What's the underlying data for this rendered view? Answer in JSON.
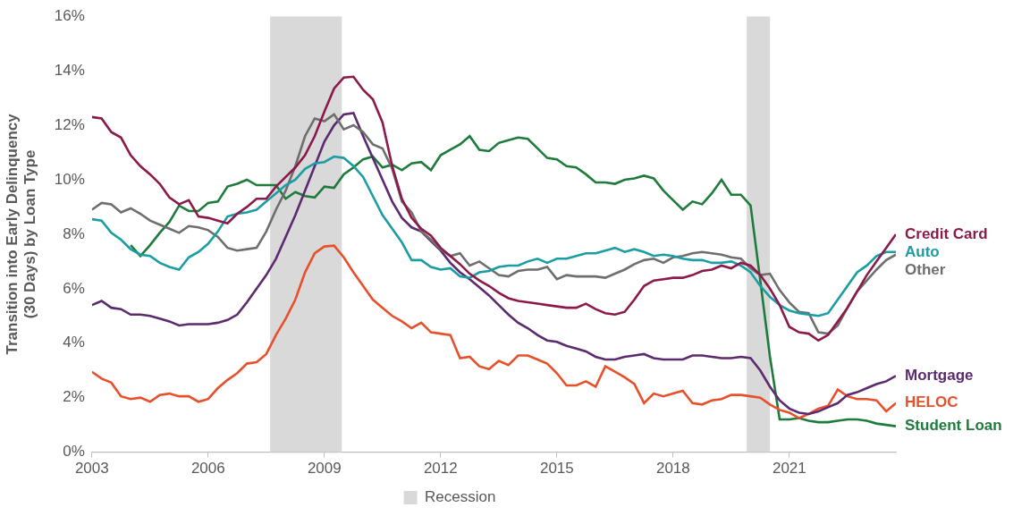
{
  "chart_data": {
    "type": "line",
    "y_label": [
      "Transition into Early Delinquency",
      "(30 Days) by Loan Type"
    ],
    "x": [
      2003,
      2003.25,
      2003.5,
      2003.75,
      2004,
      2004.25,
      2004.5,
      2004.75,
      2005,
      2005.25,
      2005.5,
      2005.75,
      2006,
      2006.25,
      2006.5,
      2006.75,
      2007,
      2007.25,
      2007.5,
      2007.75,
      2008,
      2008.25,
      2008.5,
      2008.75,
      2009,
      2009.25,
      2009.5,
      2009.75,
      2010,
      2010.25,
      2010.5,
      2010.75,
      2011,
      2011.25,
      2011.5,
      2011.75,
      2012,
      2012.25,
      2012.5,
      2012.75,
      2013,
      2013.25,
      2013.5,
      2013.75,
      2014,
      2014.25,
      2014.5,
      2014.75,
      2015,
      2015.25,
      2015.5,
      2015.75,
      2016,
      2016.25,
      2016.5,
      2016.75,
      2017,
      2017.25,
      2017.5,
      2017.75,
      2018,
      2018.25,
      2018.5,
      2018.75,
      2019,
      2019.25,
      2019.5,
      2019.75,
      2020,
      2020.25,
      2020.5,
      2020.75,
      2021,
      2021.25,
      2021.5,
      2021.75,
      2022,
      2022.25,
      2022.5,
      2022.75,
      2023,
      2023.25,
      2023.5,
      2023.75
    ],
    "series": [
      {
        "name": "Credit Card",
        "color": "#8b1a4b",
        "values": [
          12.3,
          12.25,
          11.75,
          11.55,
          10.9,
          10.5,
          10.2,
          9.85,
          9.35,
          9.1,
          9.25,
          8.65,
          8.6,
          8.5,
          8.4,
          8.75,
          9.0,
          9.3,
          9.3,
          9.75,
          10.1,
          10.45,
          10.9,
          11.6,
          12.5,
          13.35,
          13.75,
          13.78,
          13.3,
          12.95,
          12.1,
          10.5,
          9.3,
          8.6,
          8.2,
          7.95,
          7.5,
          7.2,
          6.9,
          6.55,
          6.3,
          6.1,
          5.85,
          5.65,
          5.55,
          5.5,
          5.45,
          5.4,
          5.35,
          5.3,
          5.3,
          5.45,
          5.25,
          5.1,
          5.05,
          5.15,
          5.6,
          6.1,
          6.3,
          6.35,
          6.4,
          6.4,
          6.5,
          6.65,
          6.7,
          6.85,
          6.75,
          6.95,
          6.85,
          6.5,
          6.0,
          5.4,
          4.6,
          4.4,
          4.35,
          4.1,
          4.3,
          4.8,
          5.3,
          5.9,
          6.5,
          7.0,
          7.5,
          8.0
        ]
      },
      {
        "name": "Auto",
        "color": "#1a9ea3",
        "values": [
          8.55,
          8.5,
          8.05,
          7.8,
          7.45,
          7.25,
          7.2,
          6.95,
          6.8,
          6.7,
          7.15,
          7.35,
          7.65,
          8.1,
          8.65,
          8.75,
          8.8,
          8.9,
          9.2,
          9.5,
          9.8,
          10.0,
          10.4,
          10.6,
          10.65,
          10.85,
          10.8,
          10.5,
          10.1,
          9.4,
          8.7,
          8.2,
          7.7,
          7.05,
          7.05,
          6.8,
          6.7,
          6.75,
          6.45,
          6.4,
          6.6,
          6.65,
          6.8,
          6.85,
          6.85,
          7.0,
          7.1,
          6.95,
          7.1,
          7.1,
          7.2,
          7.3,
          7.3,
          7.4,
          7.5,
          7.35,
          7.45,
          7.35,
          7.2,
          7.25,
          7.2,
          7.1,
          7.05,
          7.05,
          6.95,
          6.95,
          7.0,
          6.85,
          6.6,
          6.1,
          5.7,
          5.4,
          5.2,
          5.1,
          5.05,
          5.0,
          5.1,
          5.6,
          6.1,
          6.6,
          6.85,
          7.2,
          7.35,
          7.35
        ]
      },
      {
        "name": "Other",
        "color": "#6e6e6e",
        "values": [
          8.9,
          9.15,
          9.1,
          8.8,
          8.95,
          8.75,
          8.5,
          8.35,
          8.2,
          8.05,
          8.3,
          8.25,
          8.15,
          7.9,
          7.5,
          7.4,
          7.45,
          7.5,
          8.1,
          8.9,
          9.6,
          10.5,
          11.6,
          12.25,
          12.15,
          12.4,
          11.85,
          12.0,
          11.75,
          11.3,
          11.15,
          10.4,
          9.2,
          8.8,
          8.1,
          7.8,
          7.45,
          7.2,
          7.3,
          6.85,
          7.0,
          6.75,
          6.5,
          6.45,
          6.65,
          6.7,
          6.7,
          6.8,
          6.35,
          6.5,
          6.45,
          6.45,
          6.45,
          6.4,
          6.55,
          6.7,
          6.9,
          7.05,
          7.1,
          6.95,
          7.15,
          7.2,
          7.3,
          7.35,
          7.3,
          7.25,
          7.15,
          7.1,
          6.75,
          6.5,
          6.55,
          5.95,
          5.5,
          5.15,
          5.1,
          4.4,
          4.35,
          4.65,
          5.3,
          5.9,
          6.3,
          6.7,
          7.05,
          7.25
        ]
      },
      {
        "name": "Mortgage",
        "color": "#5b2a6f",
        "values": [
          5.4,
          5.55,
          5.3,
          5.25,
          5.05,
          5.05,
          5.0,
          4.9,
          4.8,
          4.65,
          4.7,
          4.7,
          4.7,
          4.75,
          4.85,
          5.05,
          5.5,
          6.0,
          6.5,
          7.1,
          7.9,
          8.7,
          9.6,
          10.5,
          11.4,
          12.0,
          12.4,
          12.45,
          11.6,
          10.8,
          10.0,
          9.2,
          8.6,
          8.25,
          8.1,
          7.75,
          7.4,
          6.95,
          6.6,
          6.35,
          6.05,
          5.75,
          5.4,
          5.05,
          4.75,
          4.55,
          4.3,
          4.1,
          4.05,
          3.9,
          3.8,
          3.7,
          3.5,
          3.4,
          3.4,
          3.5,
          3.55,
          3.6,
          3.45,
          3.4,
          3.4,
          3.4,
          3.55,
          3.55,
          3.5,
          3.45,
          3.45,
          3.5,
          3.45,
          3.0,
          2.4,
          1.9,
          1.6,
          1.45,
          1.4,
          1.5,
          1.65,
          1.8,
          2.1,
          2.2,
          2.35,
          2.5,
          2.6,
          2.8
        ]
      },
      {
        "name": "HELOC",
        "color": "#e8502b",
        "values": [
          2.95,
          2.7,
          2.55,
          2.05,
          1.95,
          2.0,
          1.85,
          2.1,
          2.15,
          2.05,
          2.05,
          1.85,
          1.95,
          2.35,
          2.65,
          2.9,
          3.25,
          3.3,
          3.6,
          4.3,
          4.9,
          5.6,
          6.6,
          7.3,
          7.55,
          7.58,
          7.15,
          6.6,
          6.1,
          5.6,
          5.3,
          5.0,
          4.8,
          4.55,
          4.75,
          4.4,
          4.35,
          4.3,
          3.45,
          3.5,
          3.15,
          3.05,
          3.35,
          3.2,
          3.55,
          3.55,
          3.4,
          3.25,
          2.9,
          2.45,
          2.45,
          2.6,
          2.4,
          3.15,
          2.95,
          2.75,
          2.5,
          1.8,
          2.15,
          2.05,
          2.15,
          2.25,
          1.8,
          1.75,
          1.9,
          1.95,
          2.1,
          2.1,
          2.05,
          2.0,
          1.75,
          1.55,
          1.45,
          1.25,
          1.4,
          1.6,
          1.7,
          2.3,
          2.05,
          1.95,
          1.95,
          1.9,
          1.5,
          1.8
        ]
      },
      {
        "name": "Student Loan",
        "color": "#1e7b3b",
        "values": [
          null,
          null,
          null,
          null,
          7.6,
          7.2,
          7.6,
          8.05,
          8.45,
          9.05,
          8.85,
          8.85,
          9.15,
          9.2,
          9.75,
          9.85,
          10.0,
          9.8,
          9.8,
          9.8,
          9.3,
          9.55,
          9.4,
          9.35,
          9.75,
          9.7,
          10.2,
          10.45,
          10.75,
          10.85,
          10.45,
          10.55,
          10.35,
          10.6,
          10.65,
          10.35,
          10.9,
          11.1,
          11.3,
          11.6,
          11.1,
          11.05,
          11.35,
          11.45,
          11.55,
          11.5,
          11.15,
          10.8,
          10.75,
          10.5,
          10.45,
          10.2,
          9.9,
          9.9,
          9.85,
          10.0,
          10.05,
          10.15,
          10.05,
          9.6,
          9.25,
          8.9,
          9.2,
          9.1,
          9.5,
          10.0,
          9.45,
          9.45,
          9.05,
          6.3,
          3.5,
          1.2,
          1.2,
          1.25,
          1.15,
          1.1,
          1.1,
          1.15,
          1.2,
          1.2,
          1.15,
          1.05,
          1.0,
          0.95
        ]
      }
    ],
    "recessions": {
      "name": "Recession",
      "color": "#d9d9d9",
      "ranges": [
        [
          2007.6,
          2009.45
        ],
        [
          2019.9,
          2020.5
        ]
      ]
    },
    "xlim": [
      2003,
      2023.75
    ],
    "xticks": [
      2003,
      2006,
      2009,
      2012,
      2015,
      2018,
      2021
    ],
    "ylim": [
      0,
      16
    ],
    "yticks": [
      {
        "value": 0,
        "label": "0%"
      },
      {
        "value": 2,
        "label": "2%"
      },
      {
        "value": 4,
        "label": "4%"
      },
      {
        "value": 6,
        "label": "6%"
      },
      {
        "value": 8,
        "label": "8%"
      },
      {
        "value": 10,
        "label": "10%"
      },
      {
        "value": 12,
        "label": "12%"
      },
      {
        "value": 14,
        "label": "14%"
      },
      {
        "value": 16,
        "label": "16%"
      }
    ],
    "grid": false,
    "legend": "bottom"
  }
}
